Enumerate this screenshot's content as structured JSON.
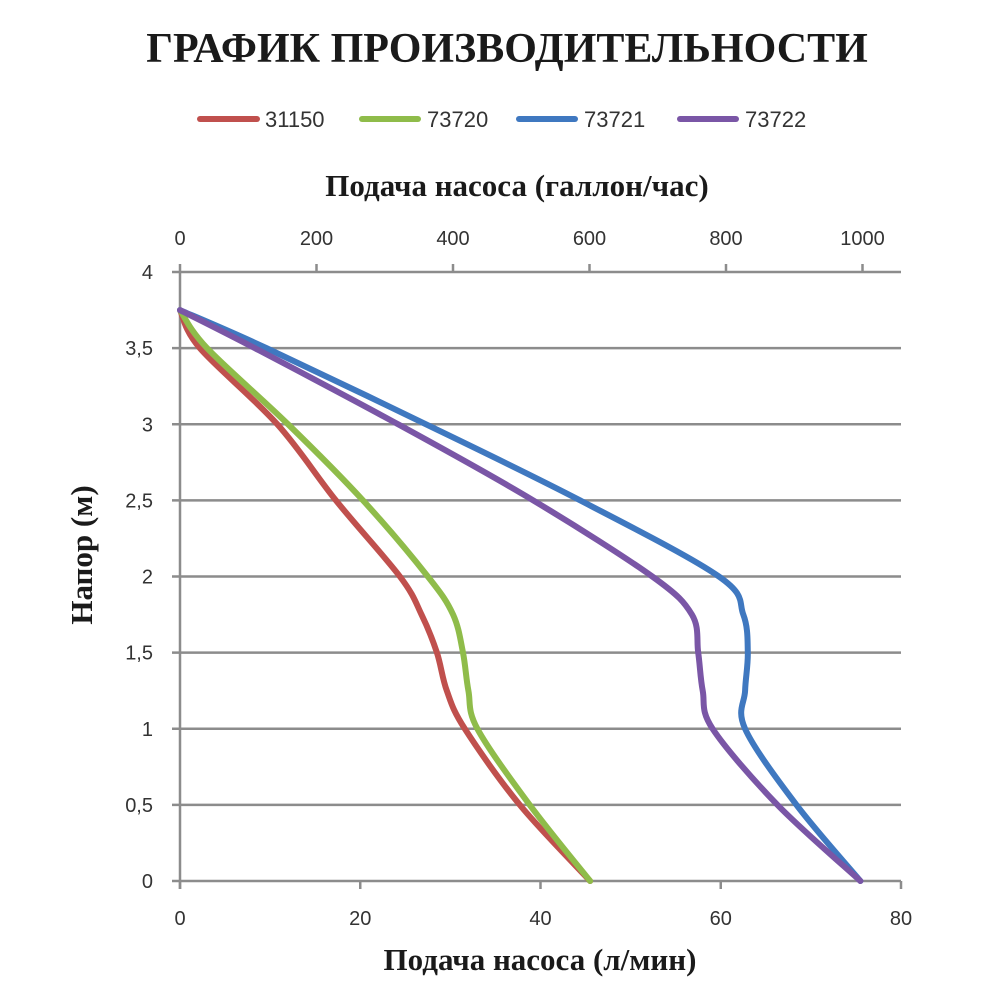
{
  "page": {
    "title": "ГРАФИК ПРОИЗВОДИТЕЛЬНОСТИ"
  },
  "legend": {
    "items": [
      {
        "label": "31150",
        "color": "#c0504d"
      },
      {
        "label": "73720",
        "color": "#8fbc4a"
      },
      {
        "label": "73721",
        "color": "#3f78c0"
      },
      {
        "label": "73722",
        "color": "#7a56a6"
      }
    ]
  },
  "axes": {
    "top_label": "Подача насоса (галлон/час)",
    "bottom_label": "Подача насоса (л/мин)",
    "left_label": "Напор (м)",
    "top_ticks": [
      "0",
      "200",
      "400",
      "600",
      "800",
      "1000"
    ],
    "bottom_ticks": [
      "0",
      "20",
      "40",
      "60",
      "80"
    ],
    "left_ticks": [
      "0",
      "0,5",
      "1",
      "1,5",
      "2",
      "2,5",
      "3",
      "3,5",
      "4"
    ]
  },
  "chart_data": {
    "type": "line",
    "title": "ГРАФИК ПРОИЗВОДИТЕЛЬНОСТИ",
    "xlabel": "Подача насоса (л/мин)",
    "x2label": "Подача насоса (галлон/час)",
    "ylabel": "Напор (м)",
    "xlim": [
      0,
      80
    ],
    "x2lim": [
      0,
      1056
    ],
    "ylim": [
      0,
      4
    ],
    "x_ticks": [
      0,
      20,
      40,
      60,
      80
    ],
    "x2_ticks": [
      0,
      200,
      400,
      600,
      800,
      1000
    ],
    "y_ticks": [
      0,
      0.5,
      1,
      1.5,
      2,
      2.5,
      3,
      3.5,
      4
    ],
    "grid": "horizontal",
    "legend_position": "top",
    "orientation_note": "x = flow (l/min), y = head (m)",
    "series": [
      {
        "name": "31150",
        "color": "#c0504d",
        "head_m": [
          3.75,
          3.5,
          3.0,
          2.5,
          2.0,
          1.75,
          1.5,
          1.25,
          1.0,
          0.5,
          0.0
        ],
        "flow_lpm": [
          0,
          2.2,
          10.8,
          17.3,
          24.4,
          26.8,
          28.5,
          29.6,
          31.6,
          37.7,
          45.5
        ]
      },
      {
        "name": "73720",
        "color": "#8fbc4a",
        "head_m": [
          3.75,
          3.5,
          3.0,
          2.5,
          2.0,
          1.75,
          1.5,
          1.25,
          1.0,
          0.5,
          0.0
        ],
        "flow_lpm": [
          0,
          3.0,
          12.0,
          20.3,
          27.5,
          30.3,
          31.4,
          32.0,
          33.0,
          38.8,
          45.5
        ]
      },
      {
        "name": "73721",
        "color": "#3f78c0",
        "head_m": [
          3.75,
          3.5,
          3.0,
          2.5,
          2.0,
          1.75,
          1.5,
          1.25,
          1.0,
          0.5,
          0.0
        ],
        "flow_lpm": [
          0,
          9.6,
          27.3,
          44.4,
          59.8,
          62.5,
          63.0,
          62.7,
          62.7,
          68.4,
          75.5
        ]
      },
      {
        "name": "73722",
        "color": "#7a56a6",
        "head_m": [
          3.75,
          3.5,
          3.0,
          2.5,
          2.0,
          1.75,
          1.5,
          1.25,
          1.0,
          0.5,
          0.0
        ],
        "flow_lpm": [
          0,
          8.3,
          24.2,
          39.2,
          52.4,
          56.8,
          57.5,
          58.0,
          59.1,
          66.3,
          75.5
        ]
      }
    ]
  }
}
